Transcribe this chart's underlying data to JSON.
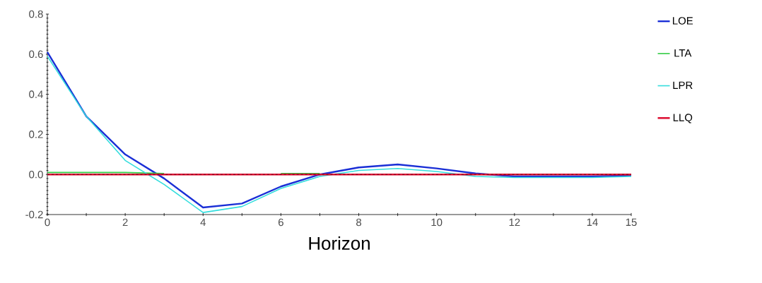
{
  "chart_data": {
    "type": "line",
    "xlabel": "Horizon",
    "x": [
      0,
      1,
      2,
      3,
      4,
      5,
      6,
      7,
      8,
      9,
      10,
      11,
      12,
      13,
      14,
      15
    ],
    "series": [
      {
        "name": "LOE",
        "color": "#1a2fd6",
        "values": [
          0.61,
          0.29,
          0.1,
          -0.02,
          -0.165,
          -0.145,
          -0.06,
          0.0,
          0.035,
          0.05,
          0.03,
          0.005,
          -0.01,
          -0.01,
          -0.01,
          -0.005
        ]
      },
      {
        "name": "LTA",
        "color": "#33cc44",
        "values": [
          0.01,
          0.01,
          0.01,
          0.005,
          null,
          null,
          0.005,
          0.005,
          null,
          null,
          null,
          null,
          null,
          null,
          null,
          null
        ]
      },
      {
        "name": "LPR",
        "color": "#33dddd",
        "values": [
          0.59,
          0.29,
          0.07,
          -0.05,
          -0.19,
          -0.16,
          -0.07,
          -0.01,
          0.02,
          0.03,
          0.015,
          -0.01,
          -0.015,
          -0.015,
          -0.015,
          -0.01
        ]
      },
      {
        "name": "LLQ",
        "color": "#dd1133",
        "values": [
          0,
          0,
          0,
          0,
          0,
          0,
          0,
          0,
          0,
          0,
          0,
          0,
          0,
          0,
          0,
          0
        ]
      }
    ],
    "xlim": [
      0,
      15
    ],
    "ylim": [
      -0.2,
      0.8
    ],
    "xticks": [
      0,
      {
        "value": 1,
        "label": null
      },
      2,
      {
        "value": 3,
        "label": null
      },
      4,
      {
        "value": 5,
        "label": null
      },
      6,
      {
        "value": 7,
        "label": null
      },
      8,
      {
        "value": 9,
        "label": null
      },
      10,
      {
        "value": 11,
        "label": null
      },
      12,
      {
        "value": 13,
        "label": null
      },
      14,
      15
    ],
    "yticks": [
      {
        "value": -0.2,
        "label": "-0.2"
      },
      {
        "value": 0,
        "label": "0.0"
      },
      {
        "value": 0.2,
        "label": "0.2"
      },
      {
        "value": 0.4,
        "label": "0.4"
      },
      {
        "value": 0.6,
        "label": "0.6"
      },
      {
        "value": 0.8,
        "label": "0.8"
      }
    ],
    "ref_lines": [
      {
        "axis": "y",
        "value": 0,
        "color": "#000000",
        "line_style": "dashed"
      }
    ],
    "grid": false,
    "legend": "right",
    "marker": "none",
    "line_style": "solid"
  }
}
